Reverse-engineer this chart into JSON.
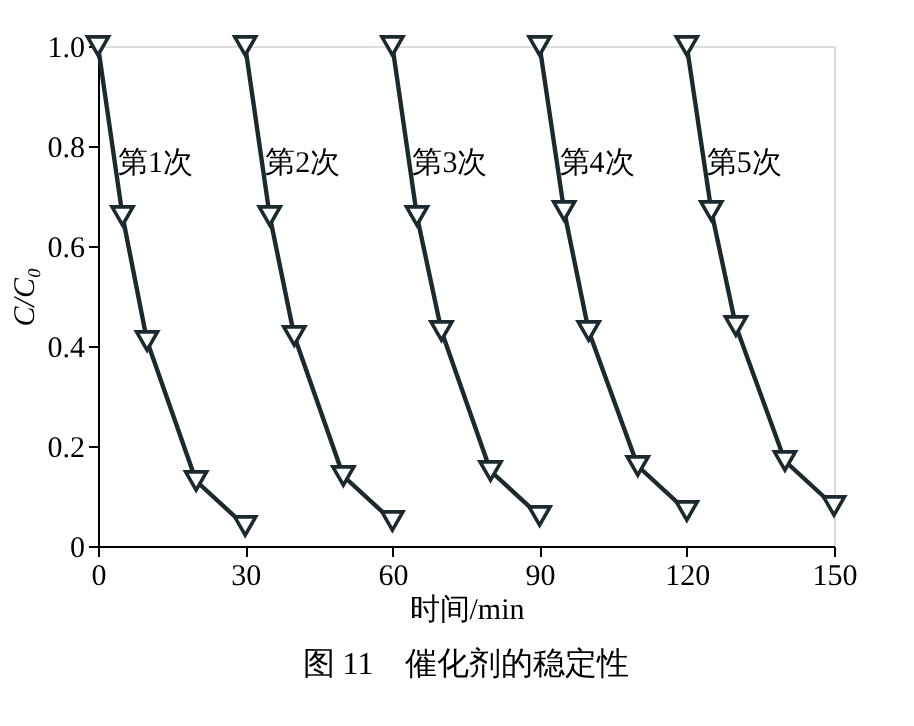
{
  "chart_data": {
    "type": "line",
    "title": "图 11　催化剂的稳定性",
    "xlabel": "时间/min",
    "ylabel": "C/C₀",
    "marker": "triangle",
    "line_style": "solid",
    "grid": false,
    "xlim": [
      0,
      150
    ],
    "ylim": [
      0,
      1.0
    ],
    "xticks": [
      0,
      30,
      60,
      90,
      120,
      150
    ],
    "yticks": [
      0,
      {
        "value": 0.2,
        "label": "0.2"
      },
      {
        "value": 0.4,
        "label": "0.4"
      },
      {
        "value": 0.6,
        "label": "0.6"
      },
      {
        "value": 0.8,
        "label": "0.8"
      },
      {
        "value": 1.0,
        "label": "1.0"
      }
    ],
    "series": [
      {
        "color": "#1c2a30",
        "x": [
          0,
          5,
          10,
          20,
          30
        ],
        "values": [
          1.0,
          0.66,
          0.41,
          0.13,
          0.04
        ]
      },
      {
        "color": "#1c2a30",
        "x": [
          30,
          35,
          40,
          50,
          60
        ],
        "values": [
          1.0,
          0.66,
          0.42,
          0.14,
          0.05
        ]
      },
      {
        "color": "#1c2a30",
        "x": [
          60,
          65,
          70,
          80,
          90
        ],
        "values": [
          1.0,
          0.66,
          0.43,
          0.15,
          0.06
        ]
      },
      {
        "color": "#1c2a30",
        "x": [
          90,
          95,
          100,
          110,
          120
        ],
        "values": [
          1.0,
          0.67,
          0.43,
          0.16,
          0.07
        ]
      },
      {
        "color": "#1c2a30",
        "x": [
          120,
          125,
          130,
          140,
          150
        ],
        "values": [
          1.0,
          0.67,
          0.44,
          0.17,
          0.08
        ]
      }
    ],
    "annotations": [
      "第1次",
      "第2次",
      "第3次",
      "第4次",
      "第5次"
    ]
  }
}
